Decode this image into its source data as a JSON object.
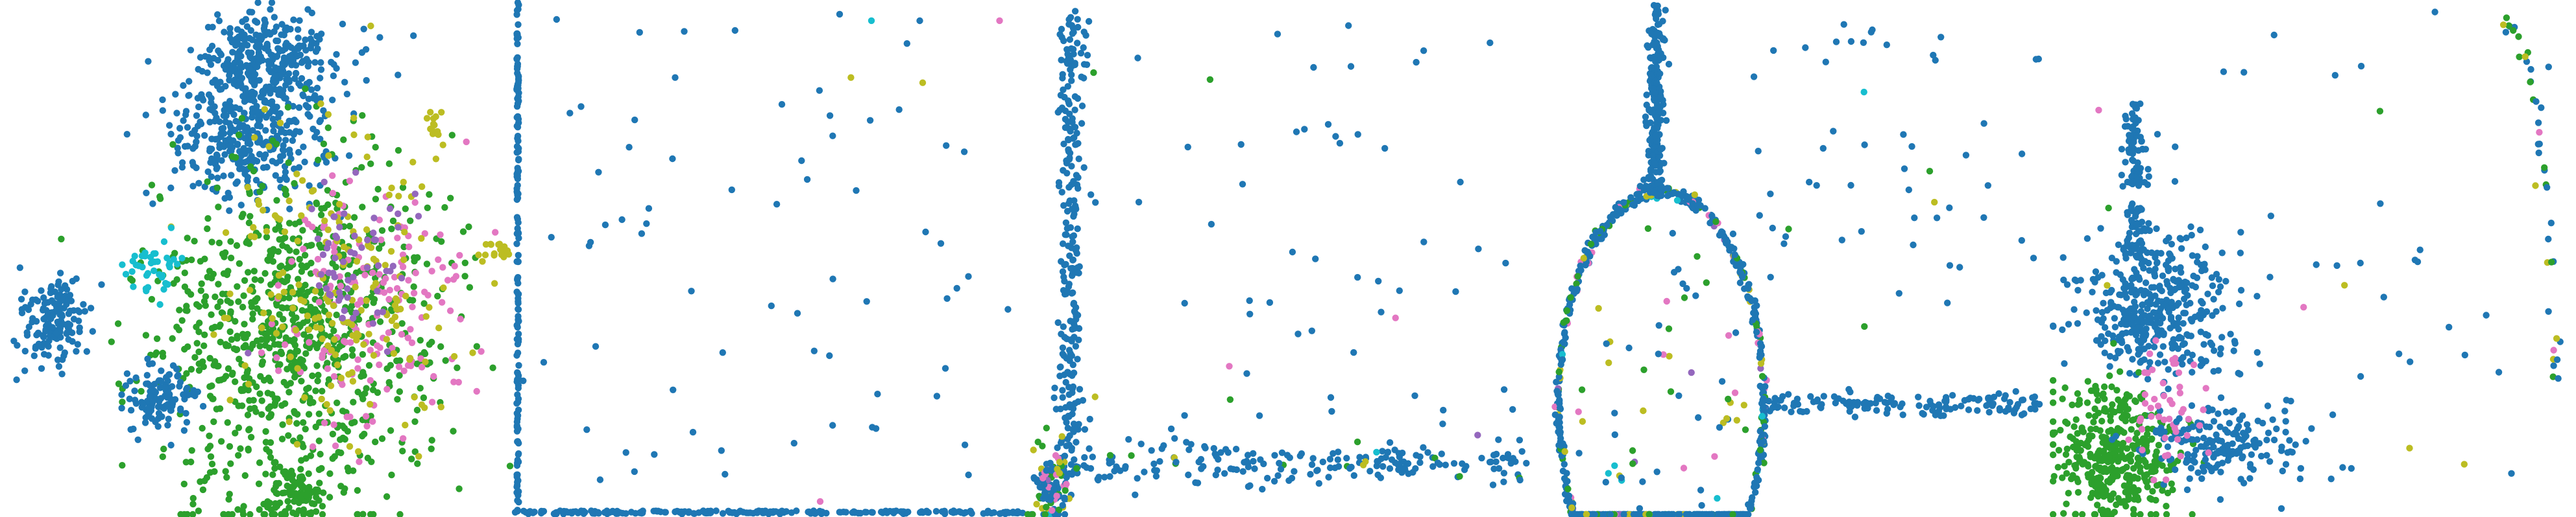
{
  "figure": {
    "panel_count": 5,
    "point_color": {
      "blue": "#1f77b4",
      "green": "#2ca02c",
      "pink": "#e377c2",
      "olive": "#bcbd22",
      "cyan": "#17becf",
      "purple": "#9467bd"
    },
    "background": "#ffffff",
    "axes_visible": false,
    "grid": false,
    "legend": "none"
  },
  "chart_data": [
    {
      "type": "scatter",
      "title": "",
      "xlabel": "",
      "ylabel": "",
      "xlim": [
        0,
        1
      ],
      "ylim": [
        0,
        1
      ],
      "grid": false,
      "description_of_shape": "clustered embedding",
      "clusters": [
        {
          "series": "blue",
          "center": [
            0.52,
            0.12
          ],
          "spread": [
            0.07,
            0.05
          ],
          "count": 340
        },
        {
          "series": "blue",
          "center": [
            0.48,
            0.26
          ],
          "spread": [
            0.08,
            0.06
          ],
          "count": 340
        },
        {
          "series": "green",
          "center": [
            0.58,
            0.65
          ],
          "spread": [
            0.14,
            0.17
          ],
          "count": 900
        },
        {
          "series": "pink",
          "center": [
            0.72,
            0.6
          ],
          "spread": [
            0.09,
            0.12
          ],
          "count": 160
        },
        {
          "series": "olive",
          "center": [
            0.66,
            0.55
          ],
          "spread": [
            0.12,
            0.15
          ],
          "count": 180
        },
        {
          "series": "purple",
          "center": [
            0.7,
            0.52
          ],
          "spread": [
            0.06,
            0.08
          ],
          "count": 60
        },
        {
          "series": "cyan",
          "center": [
            0.3,
            0.52
          ],
          "spread": [
            0.03,
            0.03
          ],
          "count": 40
        },
        {
          "series": "blue",
          "center": [
            0.1,
            0.62
          ],
          "spread": [
            0.035,
            0.04
          ],
          "count": 150
        },
        {
          "series": "blue",
          "center": [
            0.31,
            0.77
          ],
          "spread": [
            0.035,
            0.03
          ],
          "count": 120
        },
        {
          "series": "green",
          "center": [
            0.58,
            0.96
          ],
          "spread": [
            0.03,
            0.03
          ],
          "count": 90
        },
        {
          "series": "olive",
          "center": [
            0.85,
            0.25
          ],
          "spread": [
            0.01,
            0.02
          ],
          "count": 15
        },
        {
          "series": "olive",
          "center": [
            0.97,
            0.48
          ],
          "spread": [
            0.015,
            0.015
          ],
          "count": 18
        }
      ]
    },
    {
      "type": "scatter",
      "title": "",
      "xlabel": "",
      "ylabel": "",
      "xlim": [
        0,
        1
      ],
      "ylim": [
        0,
        1
      ],
      "grid": false,
      "description_of_shape": "points compressed on left and bottom edges with sparse interior",
      "edges": [
        {
          "series": "blue",
          "axis": "left",
          "count": 160
        },
        {
          "series": "blue",
          "axis": "bottom",
          "count": 220
        }
      ],
      "interior": {
        "series": "blue",
        "count": 70
      },
      "accent": [
        {
          "series": "olive",
          "x": 0.66,
          "y": 0.15
        },
        {
          "series": "olive",
          "x": 0.8,
          "y": 0.16
        },
        {
          "series": "pink",
          "x": 0.95,
          "y": 0.04
        },
        {
          "series": "cyan",
          "x": 0.7,
          "y": 0.04
        },
        {
          "series": "pink",
          "x": 0.6,
          "y": 0.97
        }
      ]
    },
    {
      "type": "scatter",
      "title": "",
      "xlabel": "",
      "ylabel": "",
      "xlim": [
        0,
        1
      ],
      "ylim": [
        0,
        1
      ],
      "grid": false,
      "description_of_shape": "L-shaped distribution with dense corner cluster",
      "vertical_arm": {
        "series": "blue",
        "x": 0.09,
        "count": 260
      },
      "horizontal_arm": {
        "series": "blue",
        "y": 0.9,
        "count": 200
      },
      "corner_cluster": {
        "series": "mixed",
        "center": [
          0.05,
          0.94
        ],
        "count": 120
      },
      "interior": {
        "series": "blue",
        "count": 60
      }
    },
    {
      "type": "scatter",
      "title": "",
      "xlabel": "",
      "ylabel": "",
      "xlim": [
        0,
        1
      ],
      "ylim": [
        0,
        1
      ],
      "grid": false,
      "description_of_shape": "ring with vertical stem and horizontal tail",
      "ring": {
        "center": [
          0.24,
          0.78
        ],
        "radius": [
          0.2,
          0.41
        ],
        "count": 700
      },
      "stem": {
        "series": "blue",
        "x": 0.23,
        "count": 220
      },
      "tail": {
        "series": "blue",
        "y": 0.78,
        "count": 140
      },
      "interior": {
        "series": "mixed",
        "count": 70
      }
    },
    {
      "type": "scatter",
      "title": "",
      "xlabel": "",
      "ylabel": "",
      "xlim": [
        0,
        1
      ],
      "ylim": [
        0,
        1
      ],
      "grid": false,
      "description_of_shape": "stacked clusters with a vertical stem and arc",
      "clusters": [
        {
          "series": "blue",
          "center": [
            0.2,
            0.6
          ],
          "spread": [
            0.07,
            0.07
          ],
          "count": 400
        },
        {
          "series": "green",
          "center": [
            0.12,
            0.88
          ],
          "spread": [
            0.06,
            0.07
          ],
          "count": 420
        },
        {
          "series": "blue",
          "center": [
            0.34,
            0.86
          ],
          "spread": [
            0.07,
            0.04
          ],
          "count": 180
        },
        {
          "series": "pink",
          "center": [
            0.22,
            0.78
          ],
          "spread": [
            0.04,
            0.05
          ],
          "count": 50
        }
      ],
      "stem": {
        "series": "blue",
        "x": 0.16,
        "count": 120
      },
      "arc": {
        "series": "mixed",
        "count": 40
      }
    }
  ]
}
